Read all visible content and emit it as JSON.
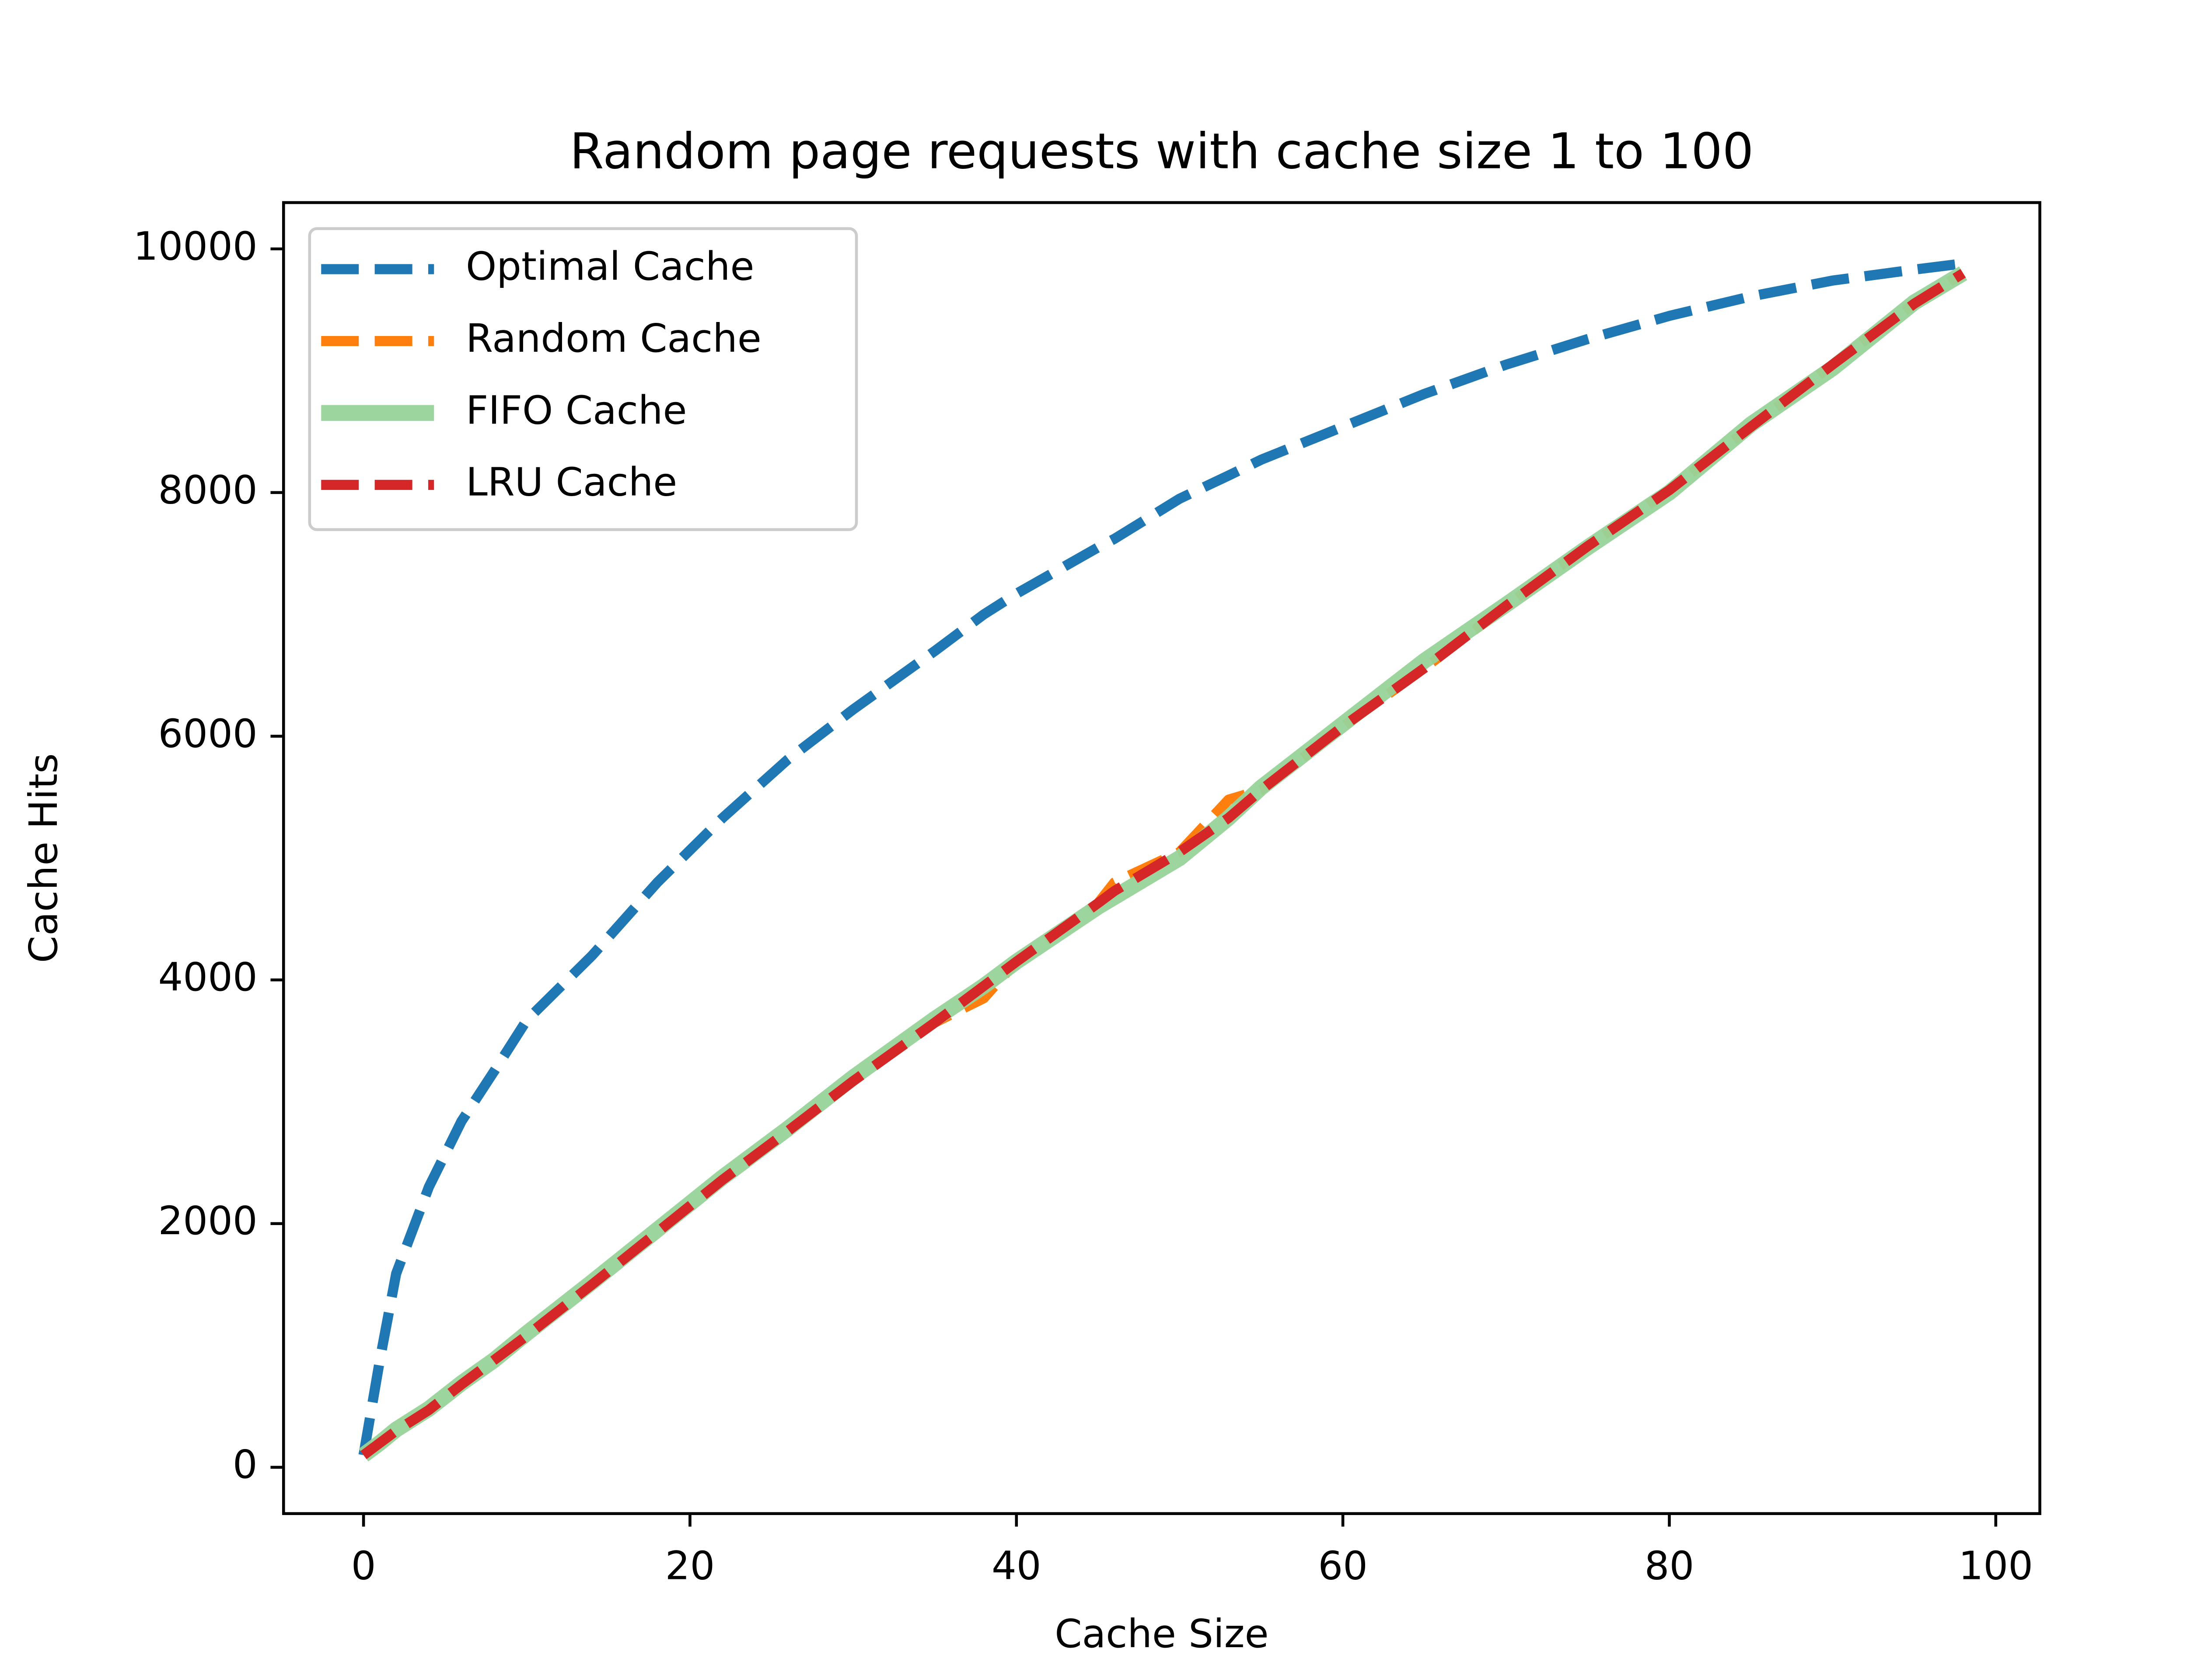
{
  "chart_data": {
    "type": "line",
    "title": "Random page requests with cache size 1 to 100",
    "xlabel": "Cache Size",
    "ylabel": "Cache Hits",
    "x": [
      0,
      1,
      2,
      4,
      6,
      8,
      10,
      14,
      18,
      22,
      26,
      30,
      35,
      38,
      40,
      45,
      46,
      50,
      53,
      55,
      60,
      65,
      70,
      75,
      80,
      85,
      90,
      95,
      98
    ],
    "series": [
      {
        "name": "Optimal Cache",
        "color": "#1f77b4",
        "linestyle": "dashed",
        "values": [
          100,
          880,
          1590,
          2300,
          2840,
          3250,
          3670,
          4200,
          4800,
          5330,
          5810,
          6220,
          6700,
          7000,
          7170,
          7550,
          7620,
          7950,
          8140,
          8270,
          8540,
          8810,
          9050,
          9260,
          9450,
          9610,
          9740,
          9830,
          9880
        ]
      },
      {
        "name": "Random Cache",
        "color": "#ff7f0e",
        "linestyle": "dashed",
        "values": [
          100,
          200,
          300,
          470,
          680,
          880,
          1080,
          1500,
          1930,
          2360,
          2760,
          3170,
          3650,
          3850,
          4150,
          4630,
          4800,
          5050,
          5480,
          5560,
          6080,
          6560,
          7070,
          7560,
          8020,
          8540,
          9050,
          9550,
          9800
        ]
      },
      {
        "name": "FIFO Cache",
        "color": "#98d39a",
        "linestyle": "solid",
        "values": [
          100,
          200,
          310,
          480,
          690,
          880,
          1100,
          1520,
          1950,
          2380,
          2780,
          3200,
          3680,
          3950,
          4150,
          4600,
          4680,
          5000,
          5330,
          5580,
          6100,
          6620,
          7080,
          7550,
          8000,
          8560,
          9020,
          9560,
          9800
        ]
      },
      {
        "name": "LRU Cache",
        "color": "#d62728",
        "linestyle": "dashed",
        "values": [
          100,
          200,
          300,
          470,
          680,
          880,
          1080,
          1500,
          1930,
          2360,
          2760,
          3170,
          3650,
          3950,
          4150,
          4630,
          4730,
          5050,
          5330,
          5560,
          6080,
          6560,
          7070,
          7560,
          8020,
          8540,
          9050,
          9550,
          9800
        ]
      }
    ],
    "xlim": [
      -4.9,
      102.7
    ],
    "xticks": [
      0,
      20,
      40,
      60,
      80,
      100
    ],
    "ylim": [
      -380,
      10380
    ],
    "yticks": [
      0,
      2000,
      4000,
      6000,
      8000,
      10000
    ],
    "legend": "upper left"
  }
}
